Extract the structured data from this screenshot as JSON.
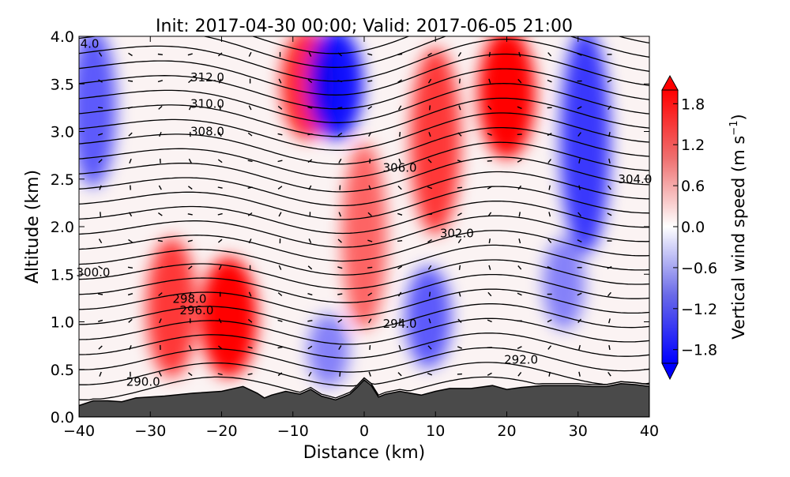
{
  "chart_data": {
    "type": "contour",
    "title": "Init: 2017-04-30 00:00; Valid: 2017-06-05 21:00",
    "xlabel": "Distance (km)",
    "ylabel": "Altitude (km)",
    "xlim": [
      -40,
      40
    ],
    "ylim": [
      0,
      4
    ],
    "xticks": [
      "−40",
      "−30",
      "−20",
      "−10",
      "0",
      "10",
      "20",
      "30",
      "40"
    ],
    "xtick_values": [
      -40,
      -30,
      -20,
      -10,
      0,
      10,
      20,
      30,
      40
    ],
    "yticks": [
      "0.0",
      "0.5",
      "1.0",
      "1.5",
      "2.0",
      "2.5",
      "3.0",
      "3.5",
      "4.0"
    ],
    "ytick_values": [
      0,
      0.5,
      1.0,
      1.5,
      2.0,
      2.5,
      3.0,
      3.5,
      4.0
    ],
    "colorbar": {
      "label_main": "Vertical wind speed (m s",
      "label_exp": "−1",
      "label_close": ")",
      "range": [
        -2.0,
        2.0
      ],
      "ticks": [
        "1.8",
        "1.2",
        "0.6",
        "0.0",
        "−0.6",
        "−1.2",
        "−1.8"
      ],
      "tick_values": [
        1.8,
        1.2,
        0.6,
        0.0,
        -0.6,
        -1.2,
        -1.8
      ],
      "colors": {
        "low": "#0000ff",
        "mid": "#ffffff",
        "high": "#ff0000"
      }
    },
    "vertical_wind_columns": [
      {
        "x_km": -38,
        "alt_range_km": [
          2.5,
          4.0
        ],
        "w": -1.0
      },
      {
        "x_km": -27,
        "alt_range_km": [
          0.5,
          1.8
        ],
        "w": 1.4
      },
      {
        "x_km": -19,
        "alt_range_km": [
          0.5,
          1.6
        ],
        "w": 2.0
      },
      {
        "x_km": -8,
        "alt_range_km": [
          3.0,
          4.0
        ],
        "w": 1.6
      },
      {
        "x_km": -4,
        "alt_range_km": [
          3.0,
          4.0
        ],
        "w": -1.8
      },
      {
        "x_km": -5,
        "alt_range_km": [
          0.4,
          1.0
        ],
        "w": -0.6
      },
      {
        "x_km": 0,
        "alt_range_km": [
          1.0,
          2.8
        ],
        "w": 0.9
      },
      {
        "x_km": 9,
        "alt_range_km": [
          0.6,
          1.5
        ],
        "w": -1.0
      },
      {
        "x_km": 10,
        "alt_range_km": [
          2.0,
          3.8
        ],
        "w": 1.4
      },
      {
        "x_km": 20,
        "alt_range_km": [
          2.8,
          4.0
        ],
        "w": 2.0
      },
      {
        "x_km": 31,
        "alt_range_km": [
          1.8,
          4.0
        ],
        "w": -1.4
      },
      {
        "x_km": 28,
        "alt_range_km": [
          1.0,
          1.8
        ],
        "w": -0.6
      }
    ],
    "theta_contours": {
      "units": "K",
      "interval": 1,
      "range": [
        289,
        314
      ],
      "labels": [
        {
          "text": "4.0",
          "x_km": -38.5,
          "alt_km": 3.92
        },
        {
          "text": "312.0",
          "x_km": -22,
          "alt_km": 3.57
        },
        {
          "text": "310.0",
          "x_km": -22,
          "alt_km": 3.29
        },
        {
          "text": "308.0",
          "x_km": -22,
          "alt_km": 3.0
        },
        {
          "text": "306.0",
          "x_km": 5,
          "alt_km": 2.62
        },
        {
          "text": "304.0",
          "x_km": 38,
          "alt_km": 2.5
        },
        {
          "text": "302.0",
          "x_km": 13,
          "alt_km": 1.93
        },
        {
          "text": "300.0",
          "x_km": -38,
          "alt_km": 1.52
        },
        {
          "text": "298.0",
          "x_km": -24.5,
          "alt_km": 1.24
        },
        {
          "text": "296.0",
          "x_km": -23.5,
          "alt_km": 1.12
        },
        {
          "text": "294.0",
          "x_km": 5,
          "alt_km": 0.98
        },
        {
          "text": "292.0",
          "x_km": 22,
          "alt_km": 0.6
        },
        {
          "text": "290.0",
          "x_km": -31,
          "alt_km": 0.37
        }
      ]
    },
    "terrain": {
      "x_km": [
        -40,
        -38,
        -36,
        -34,
        -32,
        -28,
        -24,
        -20,
        -17,
        -15,
        -14,
        -13,
        -11,
        -9,
        -7.5,
        -6,
        -4,
        -2,
        -1,
        0,
        1,
        2,
        3,
        5,
        8,
        10,
        12,
        15,
        18,
        20,
        22,
        25,
        28,
        30,
        32,
        34,
        36,
        38,
        40
      ],
      "alt_km": [
        0.12,
        0.17,
        0.17,
        0.16,
        0.2,
        0.22,
        0.25,
        0.27,
        0.32,
        0.25,
        0.2,
        0.23,
        0.27,
        0.24,
        0.29,
        0.22,
        0.18,
        0.24,
        0.31,
        0.39,
        0.33,
        0.21,
        0.24,
        0.27,
        0.23,
        0.27,
        0.3,
        0.3,
        0.33,
        0.29,
        0.31,
        0.33,
        0.33,
        0.33,
        0.32,
        0.32,
        0.35,
        0.34,
        0.32
      ]
    }
  }
}
